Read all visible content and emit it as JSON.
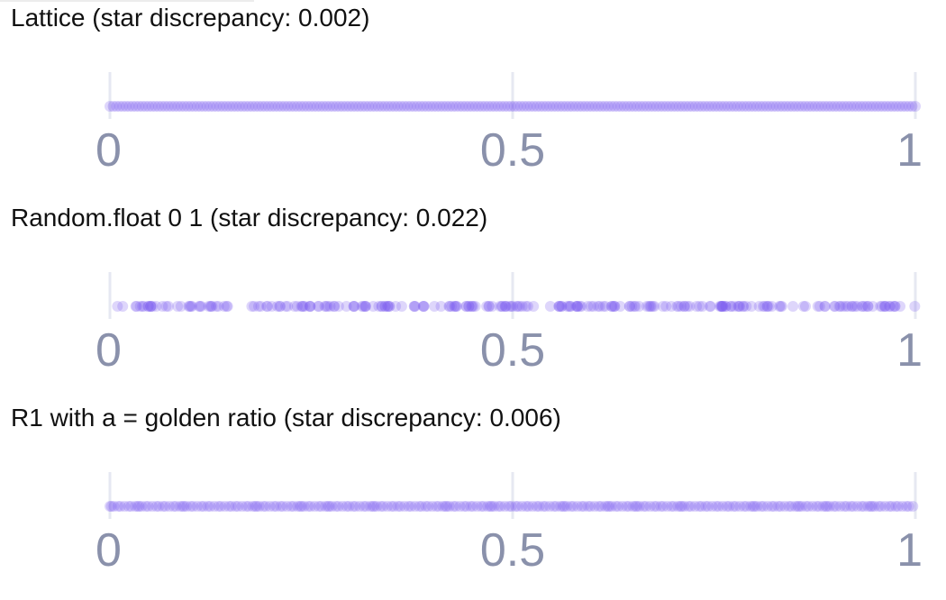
{
  "colors": {
    "point": "#7b5cf0",
    "tick_label": "#8a91ab",
    "grid": "#e6e8f2"
  },
  "chart_data": [
    {
      "type": "scatter",
      "title": "Lattice (star discrepancy: 0.002)",
      "xlim": [
        0,
        1
      ],
      "x_ticks": [
        0,
        0.5,
        1
      ],
      "x_tick_labels": [
        "0",
        "0.5",
        "1"
      ],
      "grid": true,
      "sequence": "lattice",
      "n_points": 250,
      "point_opacity": 0.25
    },
    {
      "type": "scatter",
      "title": "Random.float 0 1 (star discrepancy: 0.022)",
      "xlim": [
        0,
        1
      ],
      "x_ticks": [
        0,
        0.5,
        1
      ],
      "x_tick_labels": [
        "0",
        "0.5",
        "1"
      ],
      "grid": true,
      "sequence": "random",
      "n_points": 250,
      "point_opacity": 0.25
    },
    {
      "type": "scatter",
      "title": "R1 with a = golden ratio (star discrepancy: 0.006)",
      "xlim": [
        0,
        1
      ],
      "x_ticks": [
        0,
        0.5,
        1
      ],
      "x_tick_labels": [
        "0",
        "0.5",
        "1"
      ],
      "grid": true,
      "sequence": "golden-ratio",
      "n_points": 250,
      "point_opacity": 0.25
    }
  ]
}
